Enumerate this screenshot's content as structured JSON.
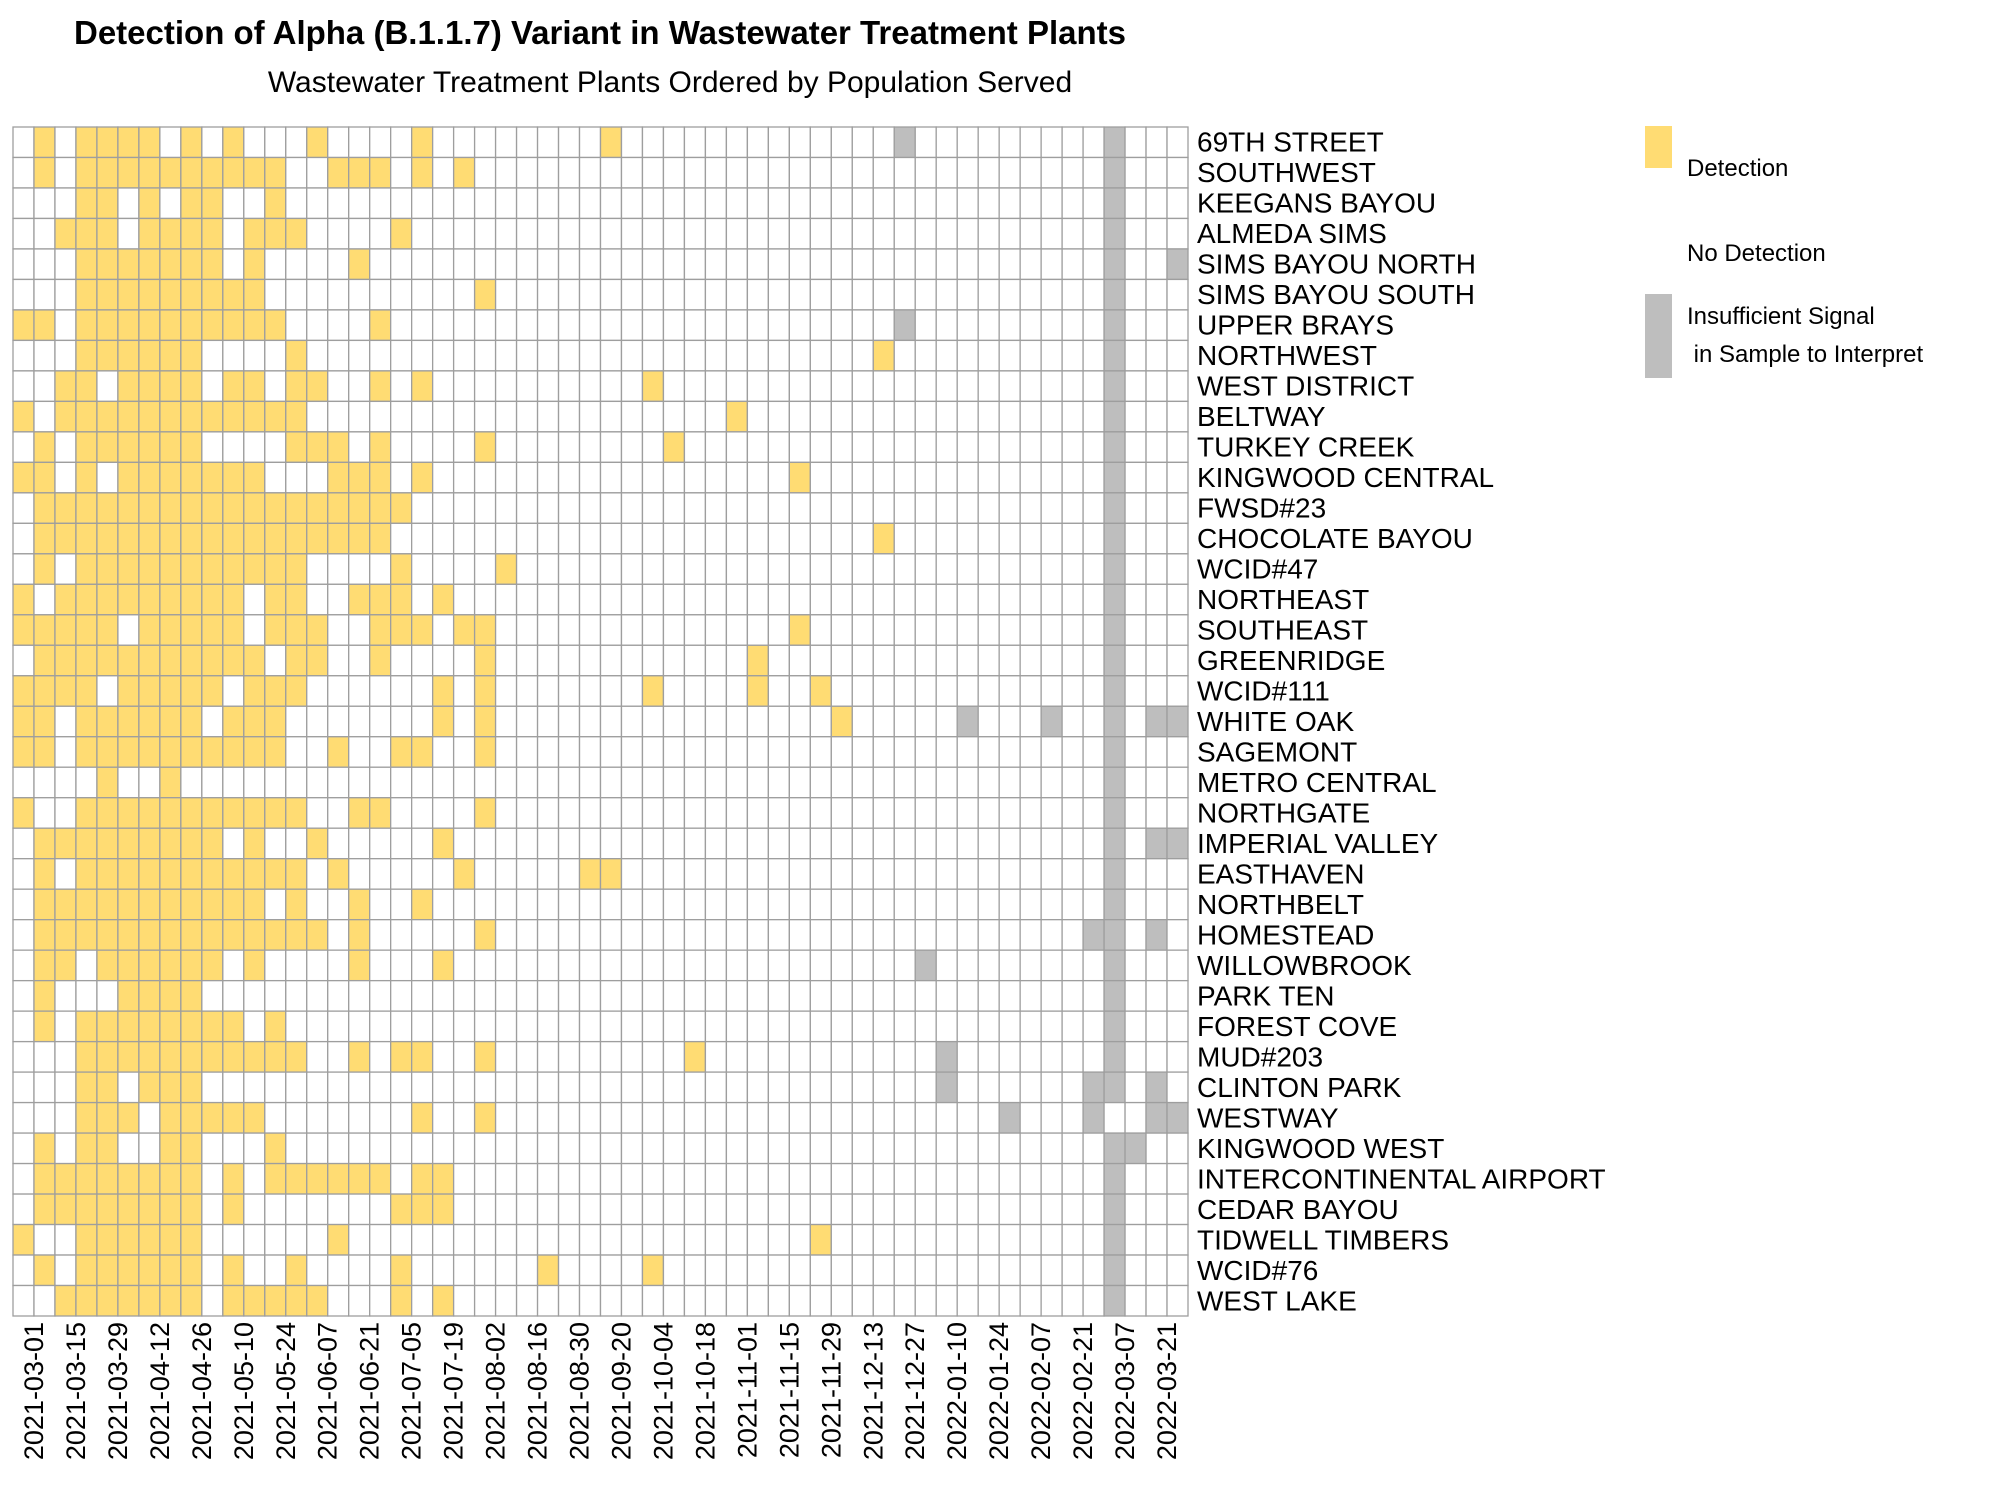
{
  "chart_data": {
    "type": "heatmap",
    "title": "Detection of Alpha (B.1.1.7) Variant in Wastewater Treatment Plants",
    "subtitle": "Wastewater Treatment Plants Ordered by Population Served",
    "x_tick_labels": [
      "2021-03-01",
      "2021-03-15",
      "2021-03-29",
      "2021-04-12",
      "2021-04-26",
      "2021-05-10",
      "2021-05-24",
      "2021-06-07",
      "2021-06-21",
      "2021-07-05",
      "2021-07-19",
      "2021-08-02",
      "2021-08-16",
      "2021-08-30",
      "2021-09-20",
      "2021-10-04",
      "2021-10-18",
      "2021-11-01",
      "2021-11-15",
      "2021-11-29",
      "2021-12-13",
      "2021-12-27",
      "2022-01-10",
      "2022-01-24",
      "2022-02-07",
      "2022-02-21",
      "2022-03-07",
      "2022-03-21"
    ],
    "rows": [
      "69TH STREET",
      "SOUTHWEST",
      "KEEGANS BAYOU",
      "ALMEDA SIMS",
      "SIMS BAYOU NORTH",
      "SIMS BAYOU SOUTH",
      "UPPER BRAYS",
      "NORTHWEST",
      "WEST DISTRICT",
      "BELTWAY",
      "TURKEY CREEK",
      "KINGWOOD CENTRAL",
      "FWSD#23",
      "CHOCOLATE BAYOU",
      "WCID#47",
      "NORTHEAST",
      "SOUTHEAST",
      "GREENRIDGE",
      "WCID#111",
      "WHITE OAK",
      "SAGEMONT",
      "METRO CENTRAL",
      "NORTHGATE",
      "IMPERIAL VALLEY",
      "EASTHAVEN",
      "NORTHBELT",
      "HOMESTEAD",
      "WILLOWBROOK",
      "PARK TEN",
      "FOREST COVE",
      "MUD#203",
      "CLINTON PARK",
      "WESTWAY",
      "KINGWOOD WEST",
      "INTERCONTINENTAL AIRPORT",
      "CEDAR BAYOU",
      "TIDWELL TIMBERS",
      "WCID#76",
      "WEST LAKE"
    ],
    "n_columns": 56,
    "value_legend": {
      "D": "Detection",
      "N": "No Detection",
      "I": "Insufficient Signal\n in Sample to Interpret"
    },
    "colors": {
      "D": "#FFDC73",
      "N": "#FFFFFF",
      "I": "#BEBEBE",
      "grid": "#9E9E9E"
    },
    "matrix": [
      "NDNDDDDNDNDNNNDNNNNDNNNNNNNNDNNNNNNNNNNNNNINNNNNNNNNINNN",
      "NDNDDDDDDDDDDNNDDDNDNDNNNNNNNNNNNNNNNNNNNNNNNNNNNNNNINNN",
      "NNNDDNDNDDNNDNNNNNNNNNNNNNNNNNNNNNNNNNNNNNNNNNNNNNNNINNN",
      "NNDDDNDDDDNDDDNNNNDNNNNNNNNNNNNNNNNNNNNNNNNNNNNNNNNNINNN",
      "NNNDDDDDDDNDNNNNDNNNNNNNNNNNNNNNNNNNNNNNNNNNNNNNNNNNINNI",
      "NNNDDDDDDDDDNNNNNNNNNNDNNNNNNNNNNNNNNNNNNNNNNNNNNNNNINNN",
      "DDNDDDDDDDDDDNNNNDNNNNNNNNNNNNNNNNNNNNNNNNINNNNNNNNNINNN",
      "NNNDDDDDDNNNNDNNNNNNNNNNNNNNNNNNNNNNNNNNNDNNNNNNNNNNINNN",
      "NNDDNDDDDNDDNDDNNDNDNNNNNNNNNNDNNNNNNNNNNNNNNNNNNNNNINNN",
      "DNDDDDDDDDDDDDNNNNNNNNNNNNNNNNNNNNDNNNNNNNNNNNNNNNNNINNN",
      "NDNDDDDDDNNNNDDDNDNNNNDNNNNNNNNDNNNNNNNNNNNNNNNNNNNNINNN",
      "DDNDNDDDDDDDNNNDDDNDNNNNNNNNNNNNNNNNNDNNNNNNNNNNNNNNINNN",
      "NDDDDDDDDDDDDDDDDDDNNNNNNNNNNNNNNNNNNNNNNNNNNNNNNNNNINNN",
      "NDDDDDDDDDDDDDDDDDNNNNNNNNNNNNNNNNNNNNNNNDNNNNNNNNNNINNN",
      "NDNDDDDDDDDDDDNNNNDNNNNDNNNNNNNNNNNNNNNNNNNNNNNNNNNNINNN",
      "DNDDDDDDDDDNDDNNDDDNDNNNNNNNNNNNNNNNNNNNNNNNNNNNNNNNINNN",
      "DDDDDNDDDDDNDDDNNDDDNDDNNNNNNNNNNNNNNDNNNNNNNNNNNNNNINNN",
      "NDDDDDDDDDDDNDDNNDNNNNDNNNNNNNNNNNNDNNNNNNNNNNNNNNNNINNN",
      "DDDDNDDDDDNDDDNNNNNNDNDNNNNNNNDNNNNDNNDNNNNNNNNNNNNNINNN",
      "DDNDDDDDDNDDDNNNNNNNDNDNNNNNNNNNNNNNNNNDNNNNNINNNINNINIINN",
      "DDNDDDDDDDDDDNNDNNDDNNDNNNNNNNNNNNNNNNNNNNNNNNNNNNNNINNN",
      "NNNNDNNDNNNNNNNNNNNNNNNNNNNNNNNNNNNNNNNNNNNNNNNNNNNNINNN",
      "DNNDDDDDDDDDDDNNDDNNNNDNNNNNNNNNNNNNNNNNNNNNNNNNNNNNINNN",
      "NDDDDDDDDDNDNNDNNNNNDNNNNNNNNNNNNNNNNNNNNNNNNNNNNNNNINII",
      "NDNDDDDDDDDDDDNDNNNNNDNNNNNDDNNNNNNNNNNNNNNNNNNNNNNNINNN",
      "NDDDDDDDDDDDNDNNDNNDNNNNNNNNNNNNNNNNNNNNNNNNNNNNNNNNINNN",
      "NDDDDDDDDDDDDDDNDNNNNNDNNNNNNNNNNNNNNNNNNNNNNNNNNNNIININ",
      "NDDNDDDDDDNDNNNNDNNNDNNNNNNNNNNNNNNNNNNNNNNINNNNNNNNINNN",
      "NDNNNDDDDNNNNNNNNNNNNNNNNNNNNNNNNNNNNNNNNNNNNNNNNNNNINNN",
      "NDNDDDDDDDDNDNNNNNNNNNNNNNNNNNNNNNNNNNNNNNNNNNNNNNNNINNN",
      "NNNDDDDDDDDDDDNNDNDDNNDNNNNNNNNNDNNNNNNNNNNNINNNNNNNINNN",
      "NNNDDNDDDNNNNNNNNNNNNNNNNNNNNNNNNNNNNNNNNNNNINNNNNNIININ",
      "NNNDDDNDDDDDNNNNNNNDNNDNNNNNNNNNNNNNNNNNNNNNNNNINNNINNIIN",
      "NDNDDNNDDNNNDNNNNNNNNNNNNNNNNNNNNNNNNNNNNNNNNNNNNNNNIINN",
      "NDDDDDDDDNDNDDDDDDNDDNNNNNNNNNNNNNNNNNNNNNNNNNNNNNNNINNN",
      "NDDDDDDDDNDNNNNNNNDDDNNNNNNNNNNNNNNNNNNNNNNNNNNNNNNNINNN",
      "DNNDDDDDDNNNNNNDNNNNNNNNNNNNNNNNNNNNNNDNNNNNNNNNNNNNINNN",
      "NDNDDDDDDNDNNDNNNNDNNNNNNDNNNNDNNNNNNNNNNNNNNNNNNNNNINNN",
      "NNDDDDDDDNDDDDDNNNDNDNNNNNNNNNNNNNNNNNNNNNNNNNNNNNNNINNN"
    ]
  },
  "legend": {
    "detection": "Detection",
    "no_detection": "No Detection",
    "insufficient": "Insufficient Signal\n in Sample to Interpret"
  }
}
